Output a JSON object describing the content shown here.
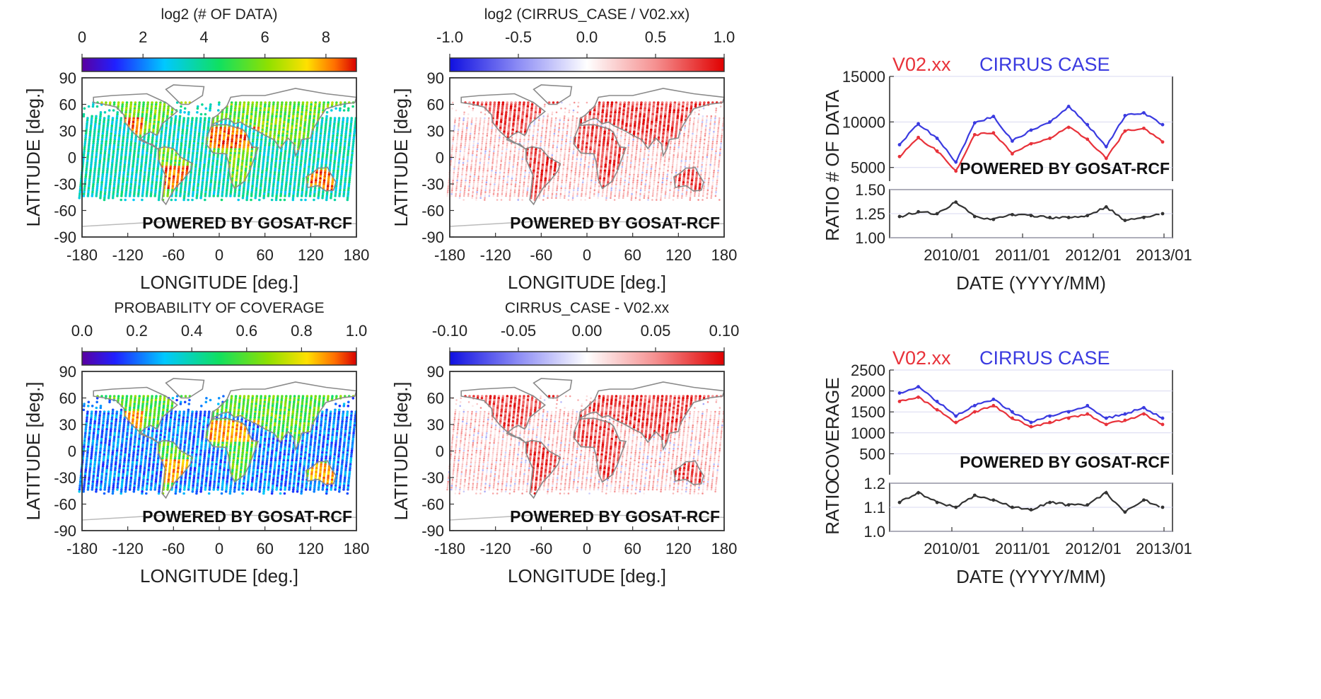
{
  "watermark": "POWERED BY GOSAT-RCF",
  "colors": {
    "v02": "#e8323a",
    "cirrus": "#3a3ae0",
    "ratio": "#333333",
    "land": "#8a8a8a"
  },
  "chart_data": [
    {
      "type": "heatmap",
      "title": "log2 (# OF DATA)",
      "xlabel": "LONGITUDE [deg.]",
      "ylabel": "LATITUDE [deg.]",
      "xlim": [
        -180,
        180
      ],
      "ylim": [
        -90,
        90
      ],
      "xticks": [
        "-180",
        "-120",
        "-60",
        "0",
        "60",
        "120",
        "180"
      ],
      "yticks": [
        "90",
        "60",
        "30",
        "0",
        "-30",
        "-60",
        "-90"
      ],
      "colorbar": {
        "range": [
          0,
          9
        ],
        "ticks": [
          "0",
          "2",
          "4",
          "6",
          "8"
        ],
        "colormap": "rainbow"
      }
    },
    {
      "type": "heatmap",
      "title": "log2 (CIRRUS_CASE / V02.xx)",
      "xlabel": "LONGITUDE [deg.]",
      "ylabel": "LATITUDE [deg.]",
      "xlim": [
        -180,
        180
      ],
      "ylim": [
        -90,
        90
      ],
      "xticks": [
        "-180",
        "-120",
        "-60",
        "0",
        "60",
        "120",
        "180"
      ],
      "yticks": [
        "90",
        "60",
        "30",
        "0",
        "-30",
        "-60",
        "-90"
      ],
      "colorbar": {
        "range": [
          -1.0,
          1.0
        ],
        "ticks": [
          "-1.0",
          "-0.5",
          "0.0",
          "0.5",
          "1.0"
        ],
        "colormap": "blue-white-red"
      }
    },
    {
      "type": "line",
      "xlabel": "DATE (YYYY/MM)",
      "xticks": [
        "2010/01",
        "2011/01",
        "2012/01",
        "2013/01"
      ],
      "x": [
        "2009/06",
        "2009/09",
        "2009/12",
        "2010/03",
        "2010/06",
        "2010/09",
        "2010/12",
        "2011/03",
        "2011/06",
        "2011/09",
        "2011/12",
        "2012/03",
        "2012/06",
        "2012/09",
        "2012/12"
      ],
      "top": {
        "ylabel": "# OF DATA",
        "ylim": [
          3500,
          15000
        ],
        "yticks": [
          "15000",
          "10000",
          "5000"
        ],
        "series": [
          {
            "name": "V02.xx",
            "values": [
              6200,
              8300,
              6800,
              4600,
              8600,
              8800,
              6500,
              7600,
              8200,
              9400,
              8100,
              6000,
              9000,
              9300,
              7800
            ]
          },
          {
            "name": "CIRRUS CASE",
            "values": [
              7500,
              9800,
              8200,
              5600,
              9900,
              10600,
              7900,
              9100,
              10000,
              11700,
              9700,
              7300,
              10700,
              11000,
              9700
            ]
          }
        ]
      },
      "bottom": {
        "ylabel": "RATIO",
        "ylim": [
          1.0,
          1.5
        ],
        "yticks": [
          "1.50",
          "1.25",
          "1.00"
        ],
        "series": [
          {
            "values": [
              1.22,
              1.27,
              1.25,
              1.37,
              1.22,
              1.19,
              1.24,
              1.23,
              1.21,
              1.21,
              1.23,
              1.32,
              1.18,
              1.21,
              1.25
            ]
          }
        ]
      }
    },
    {
      "type": "heatmap",
      "title": "PROBABILITY OF COVERAGE",
      "xlabel": "LONGITUDE [deg.]",
      "ylabel": "LATITUDE [deg.]",
      "xlim": [
        -180,
        180
      ],
      "ylim": [
        -90,
        90
      ],
      "xticks": [
        "-180",
        "-120",
        "-60",
        "0",
        "60",
        "120",
        "180"
      ],
      "yticks": [
        "90",
        "60",
        "30",
        "0",
        "-30",
        "-60",
        "-90"
      ],
      "colorbar": {
        "range": [
          0.0,
          1.0
        ],
        "ticks": [
          "0.0",
          "0.2",
          "0.4",
          "0.6",
          "0.8",
          "1.0"
        ],
        "colormap": "rainbow"
      }
    },
    {
      "type": "heatmap",
      "title": "CIRRUS_CASE - V02.xx",
      "xlabel": "LONGITUDE [deg.]",
      "ylabel": "LATITUDE [deg.]",
      "xlim": [
        -180,
        180
      ],
      "ylim": [
        -90,
        90
      ],
      "xticks": [
        "-180",
        "-120",
        "-60",
        "0",
        "60",
        "120",
        "180"
      ],
      "yticks": [
        "90",
        "60",
        "30",
        "0",
        "-30",
        "-60",
        "-90"
      ],
      "colorbar": {
        "range": [
          -0.1,
          0.1
        ],
        "ticks": [
          "-0.10",
          "-0.05",
          "0.00",
          "0.05",
          "0.10"
        ],
        "colormap": "blue-white-red"
      }
    },
    {
      "type": "line",
      "xlabel": "DATE (YYYY/MM)",
      "xticks": [
        "2010/01",
        "2011/01",
        "2012/01",
        "2013/01"
      ],
      "x": [
        "2009/06",
        "2009/09",
        "2009/12",
        "2010/03",
        "2010/06",
        "2010/09",
        "2010/12",
        "2011/03",
        "2011/06",
        "2011/09",
        "2011/12",
        "2012/03",
        "2012/06",
        "2012/09",
        "2012/12"
      ],
      "top": {
        "ylabel": "COVERAGE",
        "ylim": [
          0,
          2500
        ],
        "yticks": [
          "2500",
          "2000",
          "1500",
          "1000",
          "500"
        ],
        "series": [
          {
            "name": "V02.xx",
            "values": [
              1750,
              1850,
              1550,
              1250,
              1500,
              1650,
              1350,
              1150,
              1250,
              1350,
              1450,
              1200,
              1300,
              1450,
              1200
            ]
          },
          {
            "name": "CIRRUS CASE",
            "values": [
              1950,
              2100,
              1750,
              1400,
              1650,
              1800,
              1500,
              1250,
              1400,
              1500,
              1650,
              1350,
              1450,
              1600,
              1350
            ]
          }
        ]
      },
      "bottom": {
        "ylabel": "RATIO",
        "ylim": [
          1.0,
          1.2
        ],
        "yticks": [
          "1.2",
          "1.1",
          "1.0"
        ],
        "series": [
          {
            "values": [
              1.12,
              1.16,
              1.12,
              1.1,
              1.15,
              1.13,
              1.1,
              1.09,
              1.12,
              1.11,
              1.11,
              1.16,
              1.08,
              1.13,
              1.1
            ]
          }
        ]
      }
    }
  ]
}
